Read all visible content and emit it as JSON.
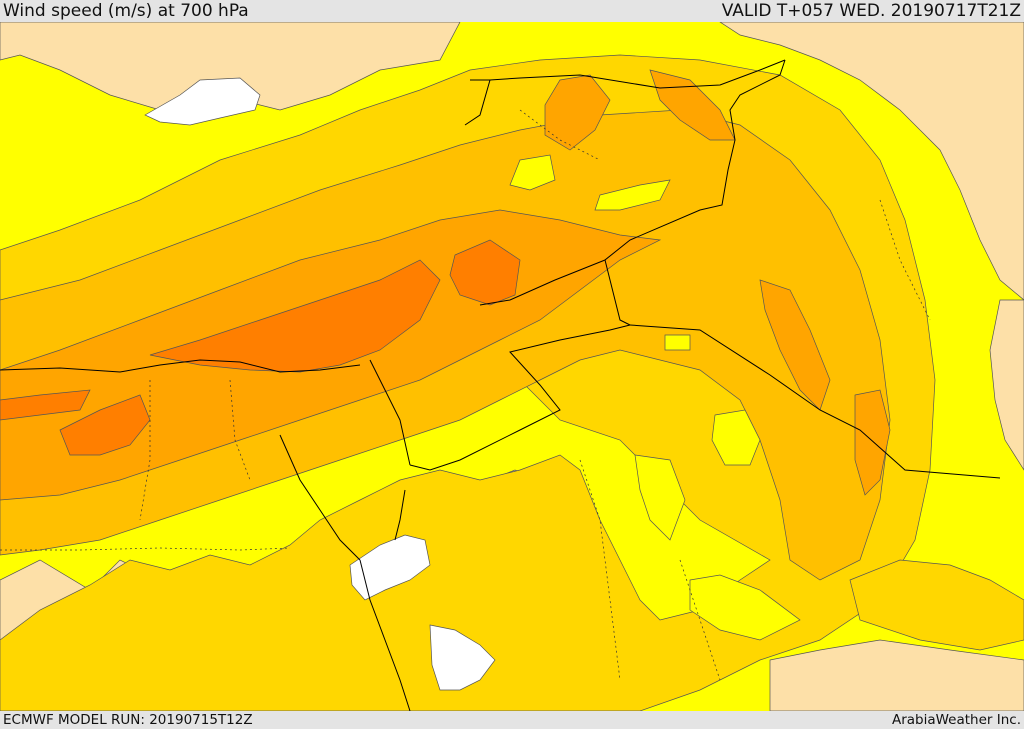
{
  "header": {
    "title": "Wind speed (m/s) at 700 hPa",
    "valid": "VALID T+057 WED. 20190717T21Z"
  },
  "footer": {
    "model_run": "ECMWF MODEL RUN: 20190715T12Z",
    "credit": "ArabiaWeather Inc."
  },
  "colors": {
    "calm": "#ffffff",
    "low": "#fde0a8",
    "base": "#ffff00",
    "mid": "#ffd700",
    "midhigh": "#ffc000",
    "high": "#ffa500",
    "max": "#ff7f00",
    "contour": "#555555",
    "border": "#000000"
  }
}
